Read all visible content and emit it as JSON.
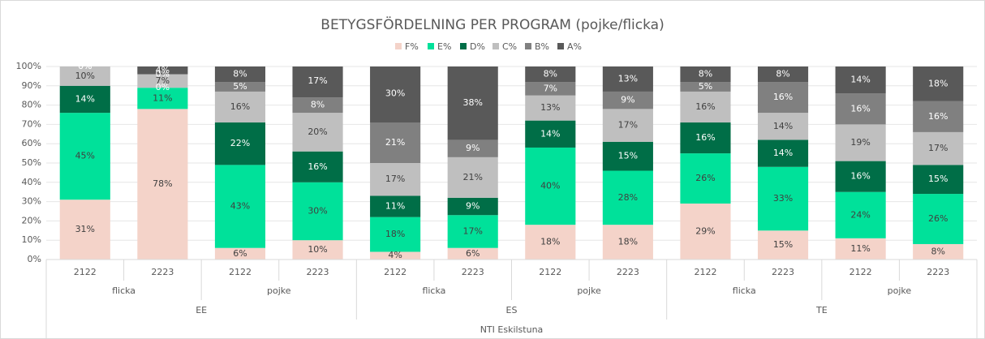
{
  "chart_data": {
    "type": "stacked_bar",
    "title": "BETYGSFÖRDELNING PER PROGRAM (pojke/flicka)",
    "categories": [
      "2122",
      "2223",
      "2122",
      "2223",
      "2122",
      "2223",
      "2122",
      "2223",
      "2122",
      "2223",
      "2122",
      "2223"
    ],
    "groups": [
      "flicka",
      "pojke",
      "flicka",
      "pojke",
      "flicka",
      "pojke"
    ],
    "programs": [
      "EE",
      "ES",
      "TE"
    ],
    "school": "NTI Eskilstuna",
    "series": [
      {
        "name": "F%",
        "color": "#f4d3c9",
        "label_color": "#404040",
        "values": [
          31,
          78,
          6,
          10,
          4,
          6,
          18,
          18,
          29,
          15,
          11,
          8
        ],
        "value_labels": [
          "31%",
          "78%",
          "6%",
          "10%",
          "4%",
          "6%",
          "18%",
          "18%",
          "29%",
          "15%",
          "11%",
          "8%"
        ]
      },
      {
        "name": "E%",
        "color": "#00e19a",
        "label_color": "#404040",
        "values": [
          45,
          11,
          43,
          30,
          18,
          17,
          40,
          28,
          26,
          33,
          24,
          26
        ],
        "value_labels": [
          "45%",
          "11%",
          "43%",
          "30%",
          "18%",
          "17%",
          "40%",
          "28%",
          "26%",
          "33%",
          "24%",
          "26%"
        ]
      },
      {
        "name": "D%",
        "color": "#006e47",
        "label_color": "#ffffff",
        "values": [
          14,
          0,
          22,
          16,
          11,
          9,
          14,
          15,
          16,
          14,
          16,
          15
        ],
        "value_labels": [
          "14%",
          "0%",
          "22%",
          "16%",
          "11%",
          "9%",
          "14%",
          "15%",
          "16%",
          "14%",
          "16%",
          "15%"
        ]
      },
      {
        "name": "C%",
        "color": "#bfbfbf",
        "label_color": "#404040",
        "values": [
          10,
          7,
          16,
          20,
          17,
          21,
          13,
          17,
          16,
          14,
          19,
          17
        ],
        "value_labels": [
          "10%",
          "7%",
          "16%",
          "20%",
          "17%",
          "21%",
          "13%",
          "17%",
          "16%",
          "14%",
          "19%",
          "17%"
        ]
      },
      {
        "name": "B%",
        "color": "#808080",
        "label_color": "#ffffff",
        "values": [
          0,
          0,
          5,
          8,
          21,
          9,
          7,
          9,
          5,
          16,
          16,
          16
        ],
        "value_labels": [
          "0%",
          "0%",
          "5%",
          "8%",
          "21%",
          "9%",
          "7%",
          "9%",
          "5%",
          "16%",
          "16%",
          "16%"
        ]
      },
      {
        "name": "A%",
        "color": "#595959",
        "label_color": "#ffffff",
        "values": [
          0,
          4,
          8,
          17,
          30,
          38,
          8,
          13,
          8,
          8,
          14,
          18
        ],
        "value_labels": [
          "0%",
          "4%",
          "8%",
          "17%",
          "30%",
          "38%",
          "8%",
          "13%",
          "8%",
          "8%",
          "14%",
          "18%"
        ]
      }
    ],
    "ylim": [
      0,
      100
    ],
    "yticks": [
      {
        "value": 0,
        "label": "0%"
      },
      {
        "value": 10,
        "label": "10%"
      },
      {
        "value": 20,
        "label": "20%"
      },
      {
        "value": 30,
        "label": "30%"
      },
      {
        "value": 40,
        "label": "40%"
      },
      {
        "value": 50,
        "label": "50%"
      },
      {
        "value": 60,
        "label": "60%"
      },
      {
        "value": 70,
        "label": "70%"
      },
      {
        "value": 80,
        "label": "80%"
      },
      {
        "value": 90,
        "label": "90%"
      },
      {
        "value": 100,
        "label": "100%"
      }
    ],
    "legend": "top"
  }
}
